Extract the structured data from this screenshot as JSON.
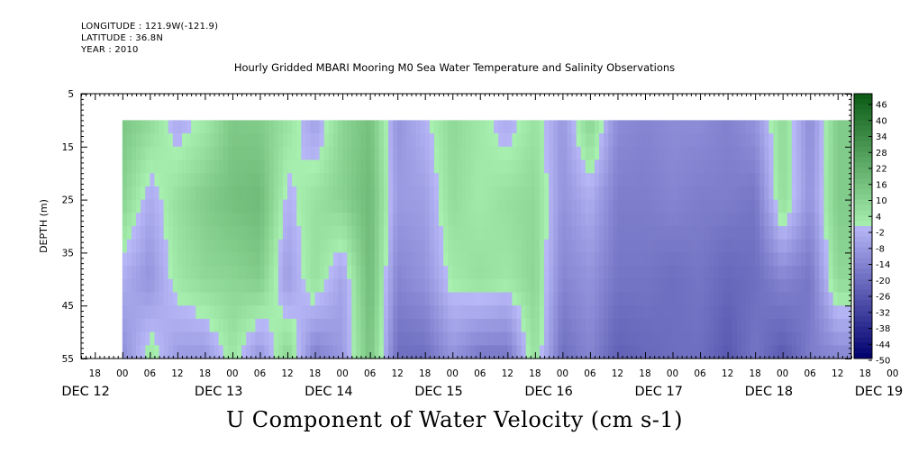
{
  "header": {
    "longitude": "LONGITUDE : 121.9W(-121.9)",
    "latitude": "LATITUDE : 36.8N",
    "year": "YEAR : 2010"
  },
  "title": "Hourly Gridded MBARI Mooring M0 Sea Water Temperature and Salinity Observations",
  "bottom_title": "U Component of Water Velocity (cm s-1)",
  "colors": {
    "positive_dark": "#0a5a14",
    "positive_light": "#a8f0b0",
    "negative_light": "#b8b8f8",
    "negative_dark": "#00006e"
  },
  "chart_data": {
    "type": "heatmap",
    "title": "Hourly Gridded MBARI Mooring M0 Sea Water Temperature and Salinity Observations",
    "ylabel": "DEPTH (m)",
    "xlabel": "",
    "ylim": [
      55,
      5
    ],
    "y_ticks": [
      5,
      15,
      25,
      35,
      45,
      55
    ],
    "data_depth_range": [
      10,
      55
    ],
    "x_range_hours": [
      -9,
      159
    ],
    "x_time_start": "DEC 12 15:00",
    "x_time_end": "DEC 19 15:00",
    "data_start": "DEC 12 23:00",
    "hour_tick_labels": [
      "18",
      "00",
      "06",
      "12",
      "18",
      "00",
      "06",
      "12",
      "18",
      "00",
      "06",
      "12",
      "18",
      "00",
      "06",
      "12",
      "18",
      "00",
      "06",
      "12",
      "18",
      "00",
      "06",
      "12",
      "18",
      "00",
      "06",
      "12",
      "18",
      "00",
      "06",
      "12"
    ],
    "day_labels": [
      "DEC 12",
      "DEC 13",
      "DEC 14",
      "DEC 15",
      "DEC 16",
      "DEC 17",
      "DEC 18",
      "DEC 19"
    ],
    "colorbar_labels": [
      "46",
      "40",
      "34",
      "28",
      "22",
      "16",
      "10",
      "4",
      "-2",
      "-8",
      "-14",
      "-20",
      "-26",
      "-32",
      "-38",
      "-44",
      "-50"
    ],
    "colorbar_range": [
      -50,
      50
    ],
    "time_hours": [
      0,
      6,
      12,
      18,
      24,
      30,
      36,
      42,
      48,
      54,
      60,
      66,
      72,
      78,
      84,
      90,
      96,
      102,
      108,
      114,
      120,
      126,
      132,
      138,
      144,
      150,
      156
    ],
    "depths": [
      10,
      25,
      40,
      55
    ],
    "values": [
      [
        14,
        8,
        -4,
        2,
        13,
        12,
        5,
        -7,
        9,
        16,
        -10,
        -2,
        8,
        3,
        -4,
        5,
        -9,
        10,
        -12,
        -14,
        -12,
        -12,
        -15,
        -10,
        8,
        -12,
        12
      ],
      [
        10,
        -4,
        6,
        12,
        16,
        18,
        -2,
        5,
        10,
        18,
        -8,
        -7,
        7,
        2,
        6,
        8,
        -10,
        -3,
        -16,
        -16,
        -14,
        -16,
        -16,
        -18,
        7,
        -10,
        12
      ],
      [
        -3,
        -10,
        3,
        8,
        9,
        12,
        -8,
        6,
        -6,
        18,
        -14,
        -10,
        2,
        6,
        3,
        9,
        -14,
        -10,
        -18,
        -18,
        -20,
        -18,
        -22,
        -20,
        -14,
        -18,
        8
      ],
      [
        -12,
        4,
        -8,
        -9,
        4,
        -10,
        10,
        -16,
        -8,
        15,
        -20,
        -20,
        -10,
        -18,
        -18,
        6,
        -20,
        -14,
        -24,
        -22,
        -20,
        -20,
        -26,
        -18,
        -26,
        -16,
        -14
      ]
    ]
  }
}
